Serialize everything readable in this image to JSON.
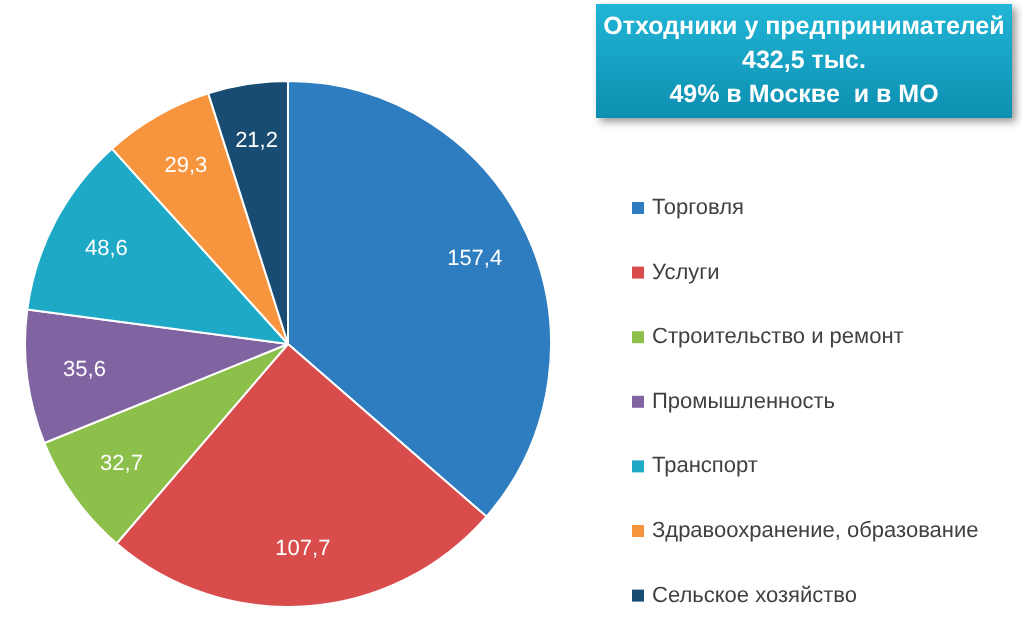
{
  "chart_data": {
    "type": "pie",
    "title": "Отходники у предпринимателей",
    "subtitle": "432,5 тыс.",
    "annotations": [
      "49% в Москве  и в МО"
    ],
    "categories": [
      "Торговля",
      "Услуги",
      "Строительство и ремонт",
      "Промышленность",
      "Транспорт",
      "Здравоохранение, образование",
      "Сельское хозяйство"
    ],
    "values": [
      157.4,
      107.7,
      32.7,
      35.6,
      48.6,
      29.3,
      21.2
    ],
    "value_labels": [
      "157,4",
      "107,7",
      "32,7",
      "35,6",
      "48,6",
      "29,3",
      "21,2"
    ],
    "colors": [
      "#2e7dc0",
      "#d94c4c",
      "#8dbf4b",
      "#8064a2",
      "#1ea9c7",
      "#f7953f",
      "#184c72"
    ],
    "legend": "right"
  }
}
